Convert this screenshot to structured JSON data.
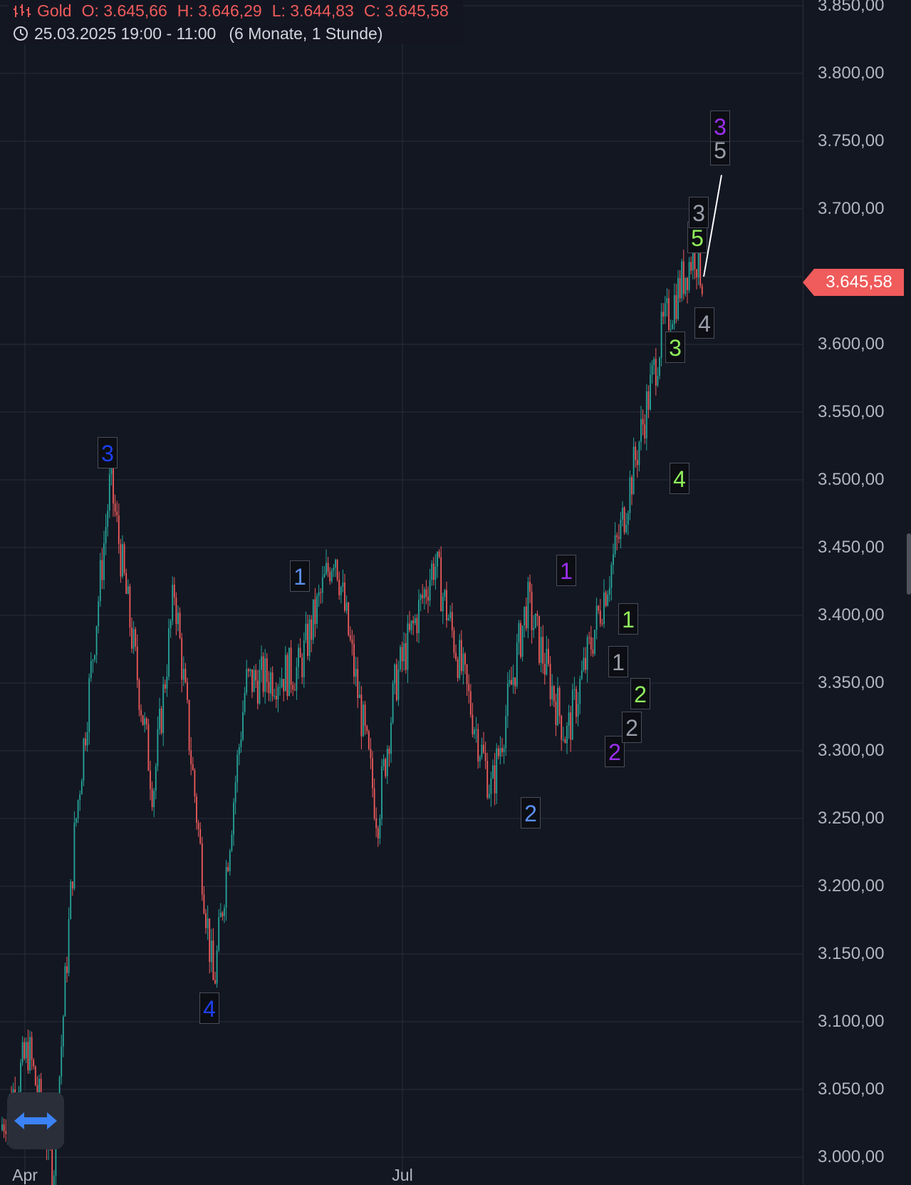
{
  "legend": {
    "symbol": "Gold",
    "open": "O: 3.645,66",
    "high": "H: 3.646,29",
    "low": "L: 3.644,83",
    "close": "C: 3.645,58",
    "range": "25.03.2025 19:00 - 11:00",
    "interval": "(6 Monate, 1 Stunde)"
  },
  "colors": {
    "background": "#131722",
    "up": "#26a69a",
    "down": "#f05b5b",
    "badge": "#f05b5b",
    "wave_dark_blue": "#1e3ff0",
    "wave_light_blue": "#5b8ff0",
    "wave_purple": "#9c2ff0",
    "wave_green": "#90f05a",
    "wave_gray": "#9a9ea8"
  },
  "price_axis": {
    "ticks": [
      "3.850,00",
      "3.800,00",
      "3.750,00",
      "3.700,00",
      "3.650,00",
      "3.600,00",
      "3.550,00",
      "3.500,00",
      "3.450,00",
      "3.400,00",
      "3.350,00",
      "3.300,00",
      "3.250,00",
      "3.200,00",
      "3.150,00",
      "3.100,00",
      "3.050,00",
      "3.000,00"
    ],
    "last_price": "3.645,58"
  },
  "time_axis": {
    "labels": [
      "Apr",
      "Jul"
    ]
  },
  "wave_labels": [
    "3",
    "4",
    "1",
    "2",
    "1",
    "2",
    "1",
    "2",
    "1",
    "2",
    "3",
    "4",
    "5",
    "3",
    "4",
    "5",
    "3"
  ],
  "chart_data": {
    "type": "candlestick",
    "symbol": "Gold",
    "interval": "1 Stunde",
    "ylim": [
      2990,
      3870
    ],
    "y_ticks": [
      3000,
      3050,
      3100,
      3150,
      3200,
      3250,
      3300,
      3350,
      3400,
      3450,
      3500,
      3550,
      3600,
      3650,
      3700,
      3750,
      3800,
      3850
    ],
    "x_labels": [
      "Apr",
      "Jul"
    ],
    "last_close": 3645.58,
    "approx_path": [
      {
        "x": "late Mar",
        "y": 3020
      },
      {
        "x": "early Apr",
        "y": 3080
      },
      {
        "x": "early Apr",
        "y": 2990
      },
      {
        "x": "mid Apr",
        "y": 3240
      },
      {
        "x": "22 Apr",
        "y": 3500
      },
      {
        "x": "late Apr",
        "y": 3270
      },
      {
        "x": "early May",
        "y": 3420
      },
      {
        "x": "mid May",
        "y": 3125
      },
      {
        "x": "late May",
        "y": 3350
      },
      {
        "x": "early Jun",
        "y": 3360
      },
      {
        "x": "mid Jun",
        "y": 3450
      },
      {
        "x": "late Jun",
        "y": 3250
      },
      {
        "x": "early Jul",
        "y": 3350
      },
      {
        "x": "late Jul",
        "y": 3440
      },
      {
        "x": "end Jul",
        "y": 3270
      },
      {
        "x": "mid Aug",
        "y": 3410
      },
      {
        "x": "late Aug",
        "y": 3310
      },
      {
        "x": "early Sep",
        "y": 3460
      },
      {
        "x": "mid Sep",
        "y": 3610
      },
      {
        "x": "Sep",
        "y": 3670
      },
      {
        "x": "last",
        "y": 3645.58
      }
    ],
    "forecast_line": [
      {
        "y": 3650
      },
      {
        "y": 3725
      }
    ]
  }
}
